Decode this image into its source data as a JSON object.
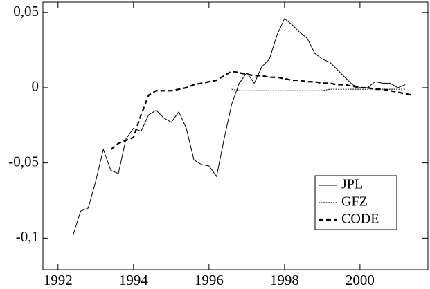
{
  "chart_data": {
    "type": "line",
    "x": [
      1992.4,
      1992.6,
      1992.8,
      1993.0,
      1993.2,
      1993.4,
      1993.6,
      1993.8,
      1994.0,
      1994.2,
      1994.4,
      1994.6,
      1994.8,
      1995.0,
      1995.2,
      1995.4,
      1995.6,
      1995.8,
      1996.0,
      1996.2,
      1996.4,
      1996.6,
      1996.8,
      1997.0,
      1997.2,
      1997.4,
      1997.6,
      1997.8,
      1998.0,
      1998.2,
      1998.4,
      1998.6,
      1998.8,
      1999.0,
      1999.2,
      1999.4,
      1999.6,
      1999.8,
      2000.0,
      2000.2,
      2000.4,
      2000.6,
      2000.8,
      2001.0,
      2001.2,
      2001.4
    ],
    "series": [
      {
        "name": "JPL",
        "color": "#000000",
        "style": "solid",
        "values": [
          -0.098,
          -0.082,
          -0.08,
          -0.062,
          -0.041,
          -0.055,
          -0.057,
          -0.034,
          -0.027,
          -0.029,
          -0.018,
          -0.015,
          -0.02,
          -0.023,
          -0.016,
          -0.027,
          -0.048,
          -0.051,
          -0.052,
          -0.059,
          -0.034,
          -0.011,
          0.003,
          0.01,
          0.003,
          0.014,
          0.019,
          0.035,
          0.046,
          0.042,
          0.037,
          0.033,
          0.023,
          0.019,
          0.017,
          0.012,
          0.007,
          0.002,
          0,
          0,
          0.004,
          0.003,
          0.003,
          0,
          0.002,
          null
        ]
      },
      {
        "name": "GFZ",
        "color": "#000000",
        "style": "dotted",
        "values": [
          null,
          null,
          null,
          null,
          null,
          null,
          null,
          null,
          null,
          null,
          null,
          null,
          null,
          null,
          null,
          null,
          null,
          null,
          null,
          null,
          null,
          -0.001,
          -0.002,
          -0.002,
          -0.002,
          -0.002,
          -0.002,
          -0.002,
          -0.002,
          -0.002,
          -0.002,
          -0.002,
          -0.002,
          -0.002,
          -0.001,
          -0.001,
          -0.001,
          -0.001,
          -0.001,
          -0.001,
          -0.001,
          -0.001,
          -0.001,
          -0.001,
          -0.001,
          null
        ]
      },
      {
        "name": "CODE",
        "color": "#000000",
        "style": "dashed",
        "values": [
          null,
          null,
          null,
          null,
          null,
          -0.041,
          -0.037,
          -0.035,
          -0.033,
          -0.018,
          -0.005,
          -0.002,
          -0.002,
          -0.002,
          -0.001,
          0,
          0.002,
          0.003,
          0.004,
          0.005,
          0.008,
          0.011,
          0.01,
          0.009,
          0.008,
          0.008,
          0.007,
          0.007,
          0.006,
          0.005,
          0.005,
          0.004,
          0.004,
          0.003,
          0.003,
          0.002,
          0.002,
          0.001,
          0,
          0,
          -0.001,
          -0.001,
          -0.002,
          -0.003,
          -0.004,
          -0.005
        ]
      }
    ],
    "xlim": [
      1991.6,
      2001.8
    ],
    "ylim": [
      -0.121,
      0.057
    ],
    "xticks": [
      1992,
      1994,
      1996,
      1998,
      2000
    ],
    "yticks": [
      {
        "value": -0.1,
        "label": "-0,1"
      },
      {
        "value": -0.05,
        "label": "-0,05"
      },
      0,
      {
        "value": 0.05,
        "label": "0,05"
      }
    ],
    "legend": "lower right"
  }
}
